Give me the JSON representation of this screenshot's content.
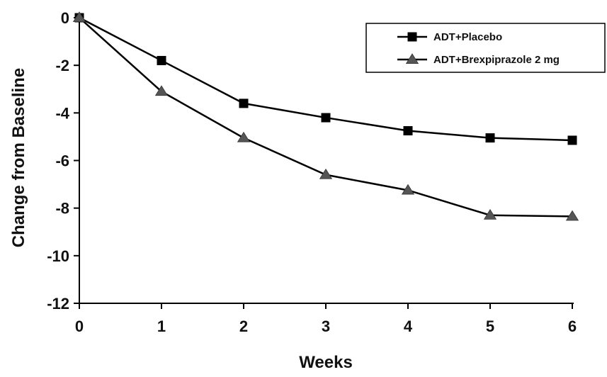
{
  "chart_data": {
    "type": "line",
    "title": "",
    "xlabel": "Weeks",
    "ylabel": "Change from Baseline",
    "x": [
      0,
      1,
      2,
      3,
      4,
      5,
      6
    ],
    "xlim": [
      0,
      6
    ],
    "ylim": [
      -12,
      0
    ],
    "xticks": [
      0,
      1,
      2,
      3,
      4,
      5,
      6
    ],
    "yticks": [
      0,
      -2,
      -4,
      -6,
      -8,
      -10,
      -12
    ],
    "grid": false,
    "legend_position": "top-right",
    "series": [
      {
        "name": "ADT+Placebo",
        "marker": "square",
        "color": "#000000",
        "values": [
          0,
          -1.8,
          -3.6,
          -4.2,
          -4.75,
          -5.05,
          -5.15
        ]
      },
      {
        "name": "ADT+Brexpiprazole 2 mg",
        "marker": "triangle",
        "color": "#555555",
        "values": [
          0,
          -3.1,
          -5.05,
          -6.6,
          -7.25,
          -8.3,
          -8.35
        ]
      }
    ]
  }
}
